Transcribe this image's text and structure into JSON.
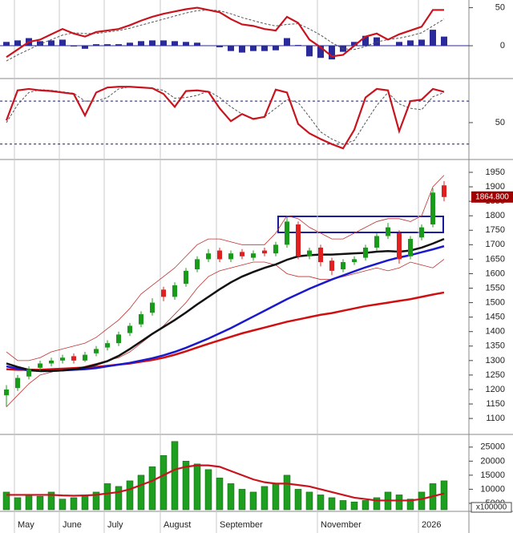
{
  "chart_data": [
    {
      "type": "macd",
      "ylim": [
        -40,
        58
      ],
      "yticks": [
        0,
        50
      ],
      "series": [
        {
          "style": "bar",
          "color": "#2a2a9a",
          "values": [
            5,
            7,
            10,
            6,
            7,
            8,
            -1,
            -4,
            2,
            2,
            2,
            4,
            6,
            7,
            7,
            6,
            5,
            4,
            0,
            -2,
            -7,
            -9,
            -7,
            -7,
            -6,
            10,
            1,
            -14,
            -16,
            -18,
            -8,
            5,
            13,
            11,
            0,
            5,
            7,
            8,
            21,
            12
          ]
        },
        {
          "style": "dashed",
          "color": "#555555",
          "values": [
            -20,
            -12,
            -5,
            2,
            8,
            14,
            17,
            16,
            16,
            18,
            20,
            23,
            27,
            31,
            35,
            39,
            43,
            46,
            47,
            46,
            42,
            37,
            33,
            29,
            26,
            28,
            29,
            22,
            14,
            4,
            -4,
            -5,
            -1,
            5,
            8,
            10,
            13,
            17,
            26,
            35
          ]
        },
        {
          "style": "line",
          "color": "#c8141e",
          "values": [
            -15,
            -5,
            5,
            8,
            15,
            22,
            16,
            12,
            18,
            20,
            22,
            27,
            33,
            38,
            42,
            45,
            48,
            50,
            47,
            44,
            35,
            28,
            26,
            22,
            20,
            38,
            30,
            8,
            -2,
            -14,
            -12,
            0,
            12,
            16,
            8,
            15,
            20,
            25,
            47,
            47
          ]
        }
      ]
    },
    {
      "type": "line",
      "ylim": [
        3,
        107
      ],
      "yticks": [
        50
      ],
      "levels": [
        80,
        20
      ],
      "series": [
        {
          "style": "dashed",
          "color": "#555555",
          "values": [
            50,
            75,
            92,
            96,
            95,
            93,
            91,
            80,
            80,
            85,
            97,
            100,
            99,
            98,
            95,
            84,
            85,
            88,
            94,
            85,
            72,
            62,
            56,
            58,
            70,
            82,
            78,
            58,
            37,
            27,
            20,
            25,
            50,
            74,
            92,
            76,
            70,
            68,
            86,
            92
          ]
        },
        {
          "style": "line",
          "color": "#c8141e",
          "values": [
            53,
            95,
            97,
            95,
            94,
            92,
            90,
            60,
            92,
            99,
            100,
            100,
            99,
            98,
            90,
            72,
            94,
            95,
            93,
            70,
            52,
            62,
            55,
            58,
            96,
            92,
            48,
            35,
            27,
            20,
            14,
            40,
            85,
            97,
            95,
            38,
            80,
            82,
            97,
            93
          ]
        }
      ]
    },
    {
      "type": "candlestick",
      "ylim": [
        1056,
        1986
      ],
      "yticks": [
        1100,
        1150,
        1200,
        1250,
        1300,
        1350,
        1400,
        1450,
        1500,
        1550,
        1600,
        1650,
        1700,
        1750,
        1800,
        1850,
        1900,
        1950
      ],
      "up_color": "#1a9a1a",
      "down_color": "#e02020",
      "open": [
        1180,
        1205,
        1245,
        1275,
        1290,
        1300,
        1315,
        1300,
        1325,
        1345,
        1360,
        1395,
        1425,
        1465,
        1545,
        1520,
        1565,
        1615,
        1650,
        1680,
        1650,
        1675,
        1655,
        1680,
        1670,
        1700,
        1770,
        1660,
        1690,
        1645,
        1615,
        1640,
        1655,
        1690,
        1730,
        1740,
        1660,
        1725,
        1770,
        1905
      ],
      "high": [
        1215,
        1250,
        1280,
        1300,
        1310,
        1320,
        1325,
        1330,
        1350,
        1370,
        1400,
        1430,
        1470,
        1515,
        1555,
        1570,
        1620,
        1660,
        1685,
        1690,
        1680,
        1685,
        1680,
        1690,
        1710,
        1795,
        1780,
        1690,
        1700,
        1655,
        1650,
        1660,
        1700,
        1740,
        1775,
        1750,
        1730,
        1770,
        1895,
        1920
      ],
      "low": [
        1140,
        1195,
        1235,
        1265,
        1280,
        1290,
        1290,
        1295,
        1315,
        1335,
        1350,
        1385,
        1415,
        1455,
        1505,
        1510,
        1555,
        1605,
        1640,
        1640,
        1640,
        1650,
        1645,
        1660,
        1660,
        1690,
        1650,
        1650,
        1625,
        1595,
        1605,
        1630,
        1645,
        1680,
        1720,
        1635,
        1650,
        1715,
        1760,
        1850
      ],
      "close": [
        1200,
        1240,
        1270,
        1290,
        1300,
        1310,
        1300,
        1320,
        1340,
        1360,
        1390,
        1420,
        1460,
        1500,
        1520,
        1560,
        1610,
        1650,
        1670,
        1650,
        1670,
        1660,
        1670,
        1670,
        1700,
        1780,
        1660,
        1680,
        1640,
        1610,
        1640,
        1650,
        1690,
        1730,
        1760,
        1650,
        1720,
        1760,
        1880,
        1864.8
      ],
      "last_price": {
        "value": 1864.8,
        "label": "1864.800"
      },
      "series": [
        {
          "color": "#c03030",
          "width": 0.8,
          "values": [
            1330,
            1300,
            1300,
            1310,
            1330,
            1340,
            1350,
            1360,
            1380,
            1410,
            1440,
            1480,
            1530,
            1560,
            1590,
            1620,
            1660,
            1700,
            1720,
            1720,
            1710,
            1700,
            1700,
            1700,
            1740,
            1800,
            1790,
            1760,
            1740,
            1720,
            1720,
            1740,
            1760,
            1780,
            1790,
            1790,
            1780,
            1800,
            1900,
            1940
          ]
        },
        {
          "color": "#c03030",
          "width": 0.8,
          "values": [
            1140,
            1180,
            1220,
            1250,
            1260,
            1270,
            1270,
            1280,
            1290,
            1300,
            1310,
            1330,
            1360,
            1390,
            1420,
            1460,
            1500,
            1550,
            1590,
            1610,
            1620,
            1630,
            1640,
            1640,
            1630,
            1600,
            1590,
            1590,
            1580,
            1580,
            1590,
            1600,
            1610,
            1620,
            1610,
            1620,
            1640,
            1630,
            1620,
            1650
          ]
        },
        {
          "color": "#d01010",
          "width": 2.5,
          "values": [
            1270,
            1268,
            1268,
            1268,
            1270,
            1272,
            1274,
            1276,
            1278,
            1282,
            1286,
            1290,
            1296,
            1302,
            1310,
            1320,
            1332,
            1345,
            1358,
            1370,
            1382,
            1394,
            1404,
            1414,
            1424,
            1434,
            1442,
            1450,
            1458,
            1464,
            1472,
            1480,
            1488,
            1494,
            1500,
            1506,
            1512,
            1520,
            1528,
            1535
          ]
        },
        {
          "color": "#1a1acc",
          "width": 2.5,
          "values": [
            1280,
            1272,
            1266,
            1264,
            1264,
            1266,
            1268,
            1270,
            1274,
            1280,
            1286,
            1292,
            1300,
            1308,
            1318,
            1330,
            1344,
            1360,
            1376,
            1394,
            1412,
            1432,
            1452,
            1472,
            1492,
            1512,
            1530,
            1548,
            1564,
            1580,
            1594,
            1608,
            1622,
            1634,
            1646,
            1656,
            1664,
            1674,
            1684,
            1695
          ]
        },
        {
          "color": "#111111",
          "width": 2.5,
          "values": [
            1290,
            1278,
            1268,
            1264,
            1264,
            1266,
            1270,
            1276,
            1286,
            1298,
            1316,
            1340,
            1366,
            1392,
            1416,
            1440,
            1466,
            1494,
            1520,
            1546,
            1570,
            1590,
            1606,
            1620,
            1632,
            1648,
            1660,
            1664,
            1666,
            1666,
            1668,
            1670,
            1672,
            1676,
            1678,
            1676,
            1680,
            1690,
            1704,
            1720
          ]
        }
      ]
    },
    {
      "type": "bar",
      "ylim": [
        2700,
        27800
      ],
      "yticks": [
        5000,
        10000,
        15000,
        20000,
        25000
      ],
      "unit_label": "x100000",
      "categories": [
        null,
        "May",
        null,
        null,
        null,
        "June",
        null,
        null,
        null,
        "July",
        null,
        null,
        null,
        null,
        "August",
        null,
        null,
        null,
        null,
        "September",
        null,
        null,
        null,
        null,
        null,
        null,
        null,
        null,
        "November",
        null,
        null,
        null,
        null,
        null,
        null,
        null,
        null,
        "2026",
        null,
        null
      ],
      "series": [
        {
          "style": "bar",
          "color": "#1f9f1f",
          "values": [
            9000,
            7000,
            8000,
            7500,
            9000,
            6500,
            7000,
            8000,
            9000,
            12000,
            11000,
            13000,
            15000,
            18000,
            22000,
            27000,
            20000,
            19000,
            17000,
            14000,
            12000,
            10000,
            9000,
            11000,
            12000,
            15000,
            10000,
            9000,
            8000,
            7000,
            6000,
            5500,
            6000,
            7000,
            9000,
            8000,
            6500,
            9000,
            12000,
            13000
          ]
        },
        {
          "style": "line",
          "color": "#c8141e",
          "values": [
            8000,
            8000,
            8000,
            8000,
            8000,
            7800,
            7700,
            7800,
            8000,
            8500,
            9000,
            10000,
            11500,
            13000,
            15000,
            17000,
            18000,
            18500,
            18500,
            18000,
            16500,
            15000,
            13500,
            12500,
            12000,
            12000,
            11500,
            11000,
            10000,
            9000,
            8000,
            7000,
            6500,
            6000,
            6000,
            6000,
            6000,
            6500,
            7500,
            8500
          ]
        }
      ]
    }
  ]
}
